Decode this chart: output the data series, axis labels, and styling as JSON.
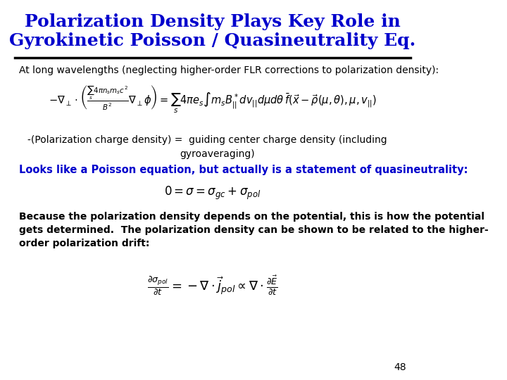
{
  "title_line1": "Polarization Density Plays Key Role in",
  "title_line2": "Gyrokinetic Poisson / Quasineutrality Eq.",
  "title_color": "#0000CC",
  "title_fontsize": 18,
  "bg_color": "#FFFFFF",
  "text_color": "#000000",
  "blue_text_color": "#0000CC",
  "line_color": "#000000",
  "slide_number": "48",
  "body_fontsize": 11,
  "eq1_label": "At long wavelengths (neglecting higher-order FLR corrections to polarization density):",
  "polarization_text1": "-(Polarization charge density) =  guiding center charge density (including",
  "polarization_text2": "gyroaveraging)",
  "blue_bold_text": "Looks like a Poisson equation, but actually is a statement of quasineutrality:",
  "because_text1": "Because the polarization density depends on the potential, this is how the potential",
  "because_text2": "gets determined.  The polarization density can be shown to be related to the higher-",
  "because_text3": "order polarization drift:"
}
